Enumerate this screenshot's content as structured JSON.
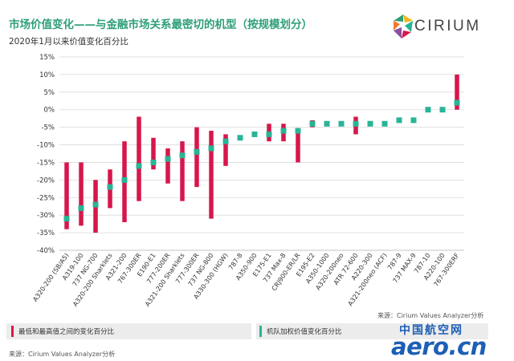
{
  "header": {
    "title": "市场价值变化——与金融市场关系最密切的机型（按规模划分）",
    "subtitle": "2020年1月以来价值变化百分比"
  },
  "logo": {
    "text": "CIRIUM"
  },
  "footer": {
    "source_right": "来源：Cirium Values Analyzer分析",
    "legend_left": "最低和最高值之间的变化百分比",
    "legend_right": "机队加权价值变化百分比",
    "source_left": "来源：Cirium Values Analyzer分析"
  },
  "watermark": {
    "cn": "中国航空网",
    "en": "aero.cn"
  },
  "colors": {
    "range_bar": "#d6174b",
    "marker": "#29b496",
    "title": "#2e9f77"
  },
  "chart_data": {
    "type": "bar",
    "ylabel": "",
    "xlabel": "",
    "ylim": [
      -40,
      15
    ],
    "y_ticks": [
      15,
      10,
      5,
      0,
      -5,
      -10,
      -15,
      -20,
      -25,
      -30,
      -35,
      -40
    ],
    "y_tick_format": "percent",
    "grid": true,
    "categories": [
      "A320-200 (SB/A5)",
      "A319-100",
      "737 NG-700",
      "A320-200 Sharklets",
      "A321-200",
      "767-300ER",
      "E190-E1",
      "777-200ER",
      "A321-200 Sharklets",
      "777-300ER",
      "737 NG-800",
      "A330-300 (HGW)",
      "787-8",
      "A350-900",
      "E175-E1",
      "737 Max-8",
      "CRJ900-ER/LR",
      "E195-E2",
      "A350-1000",
      "A320-200neo",
      "ATR 72-600",
      "A220-300",
      "A321-200neo (ACF)",
      "787-9",
      "737 MAX-9",
      "787-10",
      "A220-100",
      "767-300ERF"
    ],
    "series": [
      {
        "name": "最低和最高值之间的变化百分比",
        "type": "range",
        "low": [
          -34,
          -33,
          -35,
          -28,
          -32,
          -26,
          -17,
          -21,
          -26,
          -22,
          -31,
          -16,
          null,
          null,
          -9,
          -9,
          -15,
          -5,
          null,
          null,
          -7,
          null,
          null,
          null,
          null,
          null,
          null,
          0
        ],
        "high": [
          -15,
          -15,
          -20,
          -17,
          -9,
          -2,
          -8,
          -11,
          -9,
          -5,
          -6,
          -7,
          null,
          null,
          -4,
          -4,
          -6,
          -3,
          null,
          null,
          -2,
          null,
          null,
          null,
          null,
          null,
          null,
          10
        ]
      },
      {
        "name": "机队加权价值变化百分比",
        "type": "marker",
        "values": [
          -31,
          -28,
          -27,
          -22,
          -20,
          -16,
          -15,
          -14,
          -13,
          -12,
          -11,
          -9,
          -8,
          -7,
          -7,
          -6,
          -6,
          -4,
          -4,
          -4,
          -4,
          -4,
          -4,
          -3,
          -3,
          0,
          0,
          2
        ]
      }
    ]
  }
}
